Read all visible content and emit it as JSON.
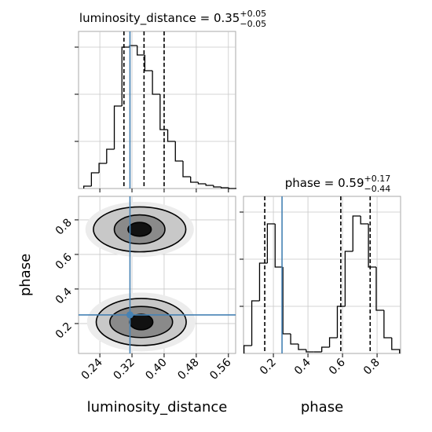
{
  "chart_data": [
    {
      "type": "histogram",
      "title": {
        "text": "luminosity_distance = 0.35",
        "upper": "+0.05",
        "lower": "−0.05"
      },
      "bins": [
        0.2,
        0.219,
        0.238,
        0.257,
        0.276,
        0.295,
        0.314,
        0.333,
        0.352,
        0.371,
        0.39,
        0.409,
        0.428,
        0.447,
        0.466,
        0.485,
        0.504,
        0.523,
        0.542,
        0.561,
        0.58
      ],
      "counts": [
        3,
        20,
        32,
        50,
        105,
        180,
        182,
        170,
        150,
        120,
        75,
        60,
        35,
        15,
        8,
        6,
        4,
        2,
        1,
        0
      ],
      "xlim": [
        0.187,
        0.578
      ],
      "xticks": [
        0.24,
        0.32,
        0.4,
        0.48,
        0.56
      ],
      "ylim": [
        0,
        200
      ],
      "yticks": [
        60,
        120,
        180
      ],
      "quantiles": [
        0.3,
        0.35,
        0.4
      ],
      "truth": 0.315,
      "color": "#000000",
      "truth_color": "#4682b4",
      "grid": true
    },
    {
      "type": "contour",
      "xlabel": "luminosity_distance",
      "ylabel": "phase",
      "xlim": [
        0.187,
        0.578
      ],
      "xticks": [
        0.24,
        0.32,
        {
          "value": 0.4,
          "label": "0.40"
        },
        0.48,
        0.56
      ],
      "ylim": [
        0.027,
        0.936
      ],
      "yticks": [
        0.2,
        0.4,
        0.6,
        0.8
      ],
      "contours": [
        {
          "center": [
            0.339,
            0.745
          ],
          "radius": [
            0.135,
            0.16
          ],
          "fill": "#ececec"
        },
        {
          "center": [
            0.339,
            0.745
          ],
          "radius": [
            0.115,
            0.13
          ],
          "fill": "#c8c8c8"
        },
        {
          "center": [
            0.339,
            0.745
          ],
          "radius": [
            0.063,
            0.084
          ],
          "fill": "#8a8a8a"
        },
        {
          "center": [
            0.339,
            0.745
          ],
          "radius": [
            0.029,
            0.04
          ],
          "fill": "#111111"
        },
        {
          "center": [
            0.343,
            0.209
          ],
          "radius": [
            0.135,
            0.17
          ],
          "fill": "#ececec"
        },
        {
          "center": [
            0.343,
            0.209
          ],
          "radius": [
            0.112,
            0.136
          ],
          "fill": "#c8c8c8"
        },
        {
          "center": [
            0.343,
            0.209
          ],
          "radius": [
            0.078,
            0.09
          ],
          "fill": "#8a8a8a"
        },
        {
          "center": [
            0.343,
            0.209
          ],
          "radius": [
            0.029,
            0.045
          ],
          "fill": "#111111"
        }
      ],
      "truth": [
        0.315,
        0.25
      ],
      "truth_color": "#4682b4",
      "grid": true
    },
    {
      "type": "histogram",
      "title": {
        "text": "phase = 0.59",
        "upper": "+0.17",
        "lower": "−0.44"
      },
      "xlabel": "phase",
      "bins": [
        0.03,
        0.075,
        0.12,
        0.165,
        0.21,
        0.255,
        0.3,
        0.345,
        0.39,
        0.435,
        0.48,
        0.525,
        0.57,
        0.615,
        0.66,
        0.705,
        0.75,
        0.795,
        0.84,
        0.885,
        0.93
      ],
      "counts": [
        10,
        67,
        115,
        165,
        110,
        25,
        12,
        5,
        2,
        2,
        8,
        20,
        60,
        130,
        175,
        165,
        110,
        55,
        20,
        5
      ],
      "xlim": [
        0.027,
        0.936
      ],
      "xticks": [
        0.2,
        0.4,
        0.6,
        0.8
      ],
      "ylim": [
        0,
        200
      ],
      "yticks": [
        60,
        120,
        180
      ],
      "quantiles": [
        0.15,
        0.59,
        0.76
      ],
      "truth": 0.25,
      "color": "#000000",
      "truth_color": "#4682b4",
      "grid": true
    }
  ]
}
